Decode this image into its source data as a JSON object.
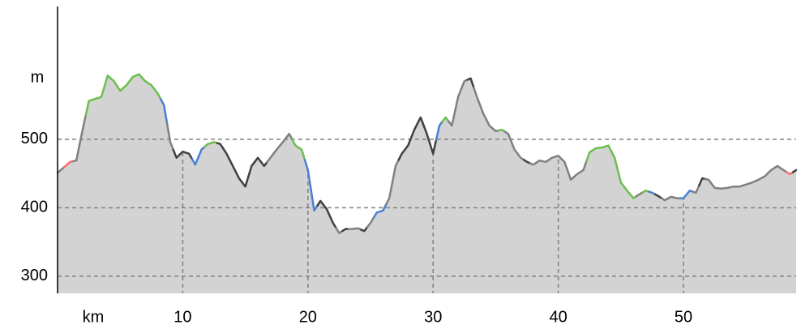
{
  "chart_data": {
    "type": "elevation",
    "xlabel": "km",
    "ylabel": "m",
    "xlim": [
      0,
      59
    ],
    "ylim": [
      275,
      694
    ],
    "xticks": [
      10,
      20,
      30,
      40,
      50
    ],
    "yticks": [
      300,
      400,
      500
    ],
    "grid": true,
    "fill_color": "#d3d3d3",
    "x": [
      0,
      1,
      1.5,
      2,
      2.5,
      3,
      3.5,
      4,
      4.5,
      5,
      5.5,
      6,
      6.5,
      7,
      7.5,
      8,
      8.5,
      9,
      9.5,
      10,
      10.5,
      11,
      11.5,
      12,
      12.5,
      13,
      13.5,
      14,
      14.5,
      15,
      15.5,
      16,
      16.5,
      17,
      17.5,
      18,
      18.5,
      19,
      19.5,
      20,
      20.5,
      21,
      21.5,
      22,
      22.5,
      23,
      23.5,
      24,
      24.5,
      25,
      25.5,
      26,
      26.5,
      27,
      27.5,
      28,
      28.5,
      29,
      29.5,
      30,
      30.5,
      31,
      31.5,
      32,
      32.5,
      33,
      33.5,
      34,
      34.5,
      35,
      35.5,
      36,
      36.5,
      37,
      37.5,
      38,
      38.5,
      39,
      39.5,
      40,
      40.5,
      41,
      41.5,
      42,
      42.5,
      43,
      43.5,
      44,
      44.5,
      45,
      45.5,
      46,
      46.5,
      47,
      47.5,
      48,
      48.5,
      49,
      49.5,
      50,
      50.5,
      51,
      51.5,
      52,
      52.5,
      53,
      53.5,
      54,
      54.5,
      55,
      55.5,
      56,
      56.5,
      57,
      57.5,
      58,
      58.5,
      59
    ],
    "values": [
      451,
      467,
      469,
      514,
      556,
      559,
      562,
      593,
      585,
      571,
      579,
      591,
      595,
      585,
      579,
      567,
      550,
      496,
      473,
      482,
      479,
      463,
      485,
      493,
      496,
      493,
      479,
      461,
      443,
      431,
      461,
      473,
      461,
      473,
      485,
      496,
      508,
      491,
      485,
      455,
      396,
      410,
      398,
      378,
      363,
      369,
      369,
      370,
      366,
      378,
      393,
      396,
      414,
      461,
      479,
      491,
      514,
      532,
      508,
      479,
      520,
      532,
      520,
      562,
      585,
      589,
      562,
      538,
      520,
      512,
      514,
      508,
      485,
      473,
      467,
      463,
      469,
      467,
      473,
      476,
      467,
      441,
      449,
      455,
      481,
      487,
      488,
      491,
      473,
      437,
      425,
      414,
      420,
      425,
      422,
      417,
      411,
      416,
      414,
      414,
      425,
      422,
      443,
      441,
      429,
      428,
      429,
      431,
      431,
      434,
      437,
      441,
      446,
      455,
      461,
      455,
      449,
      455
    ],
    "colors": [
      "#808080",
      "#ff6b6b",
      "#808080",
      "#808080",
      "#6cbf4e",
      "#6cbf4e",
      "#6cbf4e",
      "#6cbf4e",
      "#6cbf4e",
      "#6cbf4e",
      "#6cbf4e",
      "#6cbf4e",
      "#6cbf4e",
      "#6cbf4e",
      "#6cbf4e",
      "#6cbf4e",
      "#4a7fd4",
      "#808080",
      "#404040",
      "#404040",
      "#404040",
      "#4a7fd4",
      "#4a7fd4",
      "#6cbf4e",
      "#6cbf4e",
      "#404040",
      "#404040",
      "#404040",
      "#404040",
      "#404040",
      "#404040",
      "#404040",
      "#404040",
      "#808080",
      "#808080",
      "#808080",
      "#808080",
      "#6cbf4e",
      "#6cbf4e",
      "#4a7fd4",
      "#4a7fd4",
      "#404040",
      "#404040",
      "#404040",
      "#808080",
      "#404040",
      "#808080",
      "#808080",
      "#404040",
      "#808080",
      "#4a7fd4",
      "#4a7fd4",
      "#808080",
      "#808080",
      "#404040",
      "#404040",
      "#404040",
      "#404040",
      "#404040",
      "#404040",
      "#4a7fd4",
      "#6cbf4e",
      "#808080",
      "#808080",
      "#808080",
      "#404040",
      "#808080",
      "#808080",
      "#808080",
      "#808080",
      "#6cbf4e",
      "#808080",
      "#808080",
      "#808080",
      "#404040",
      "#808080",
      "#808080",
      "#808080",
      "#808080",
      "#808080",
      "#808080",
      "#808080",
      "#808080",
      "#808080",
      "#6cbf4e",
      "#6cbf4e",
      "#6cbf4e",
      "#6cbf4e",
      "#6cbf4e",
      "#6cbf4e",
      "#6cbf4e",
      "#6cbf4e",
      "#808080",
      "#6cbf4e",
      "#4a7fd4",
      "#404040",
      "#808080",
      "#808080",
      "#808080",
      "#4a7fd4",
      "#4a7fd4",
      "#808080",
      "#404040",
      "#808080",
      "#808080",
      "#808080",
      "#808080",
      "#808080",
      "#808080",
      "#808080",
      "#808080",
      "#808080",
      "#808080",
      "#808080",
      "#808080",
      "#808080",
      "#ff6b6b",
      "#404040"
    ]
  }
}
